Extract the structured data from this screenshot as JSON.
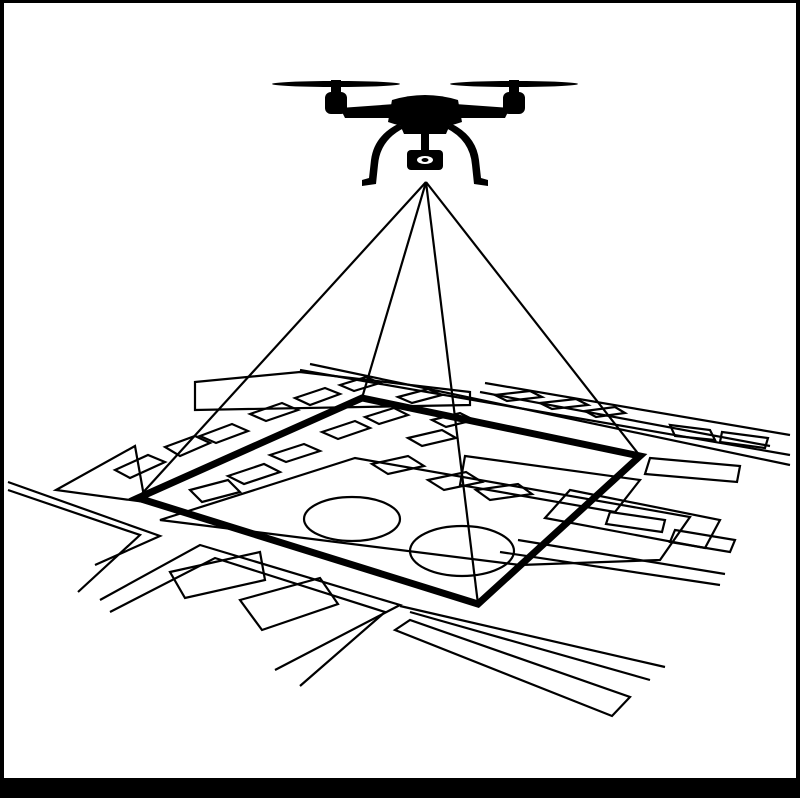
{
  "figure": {
    "subject": "drone-survey-footprint",
    "colors": {
      "ink": "#000000",
      "paper": "#ffffff",
      "border": "#000000"
    },
    "icons": [
      "drone-icon",
      "camera-icon",
      "propeller-icon",
      "survey-area-outline",
      "camera-frustum",
      "city-map-plan"
    ]
  }
}
